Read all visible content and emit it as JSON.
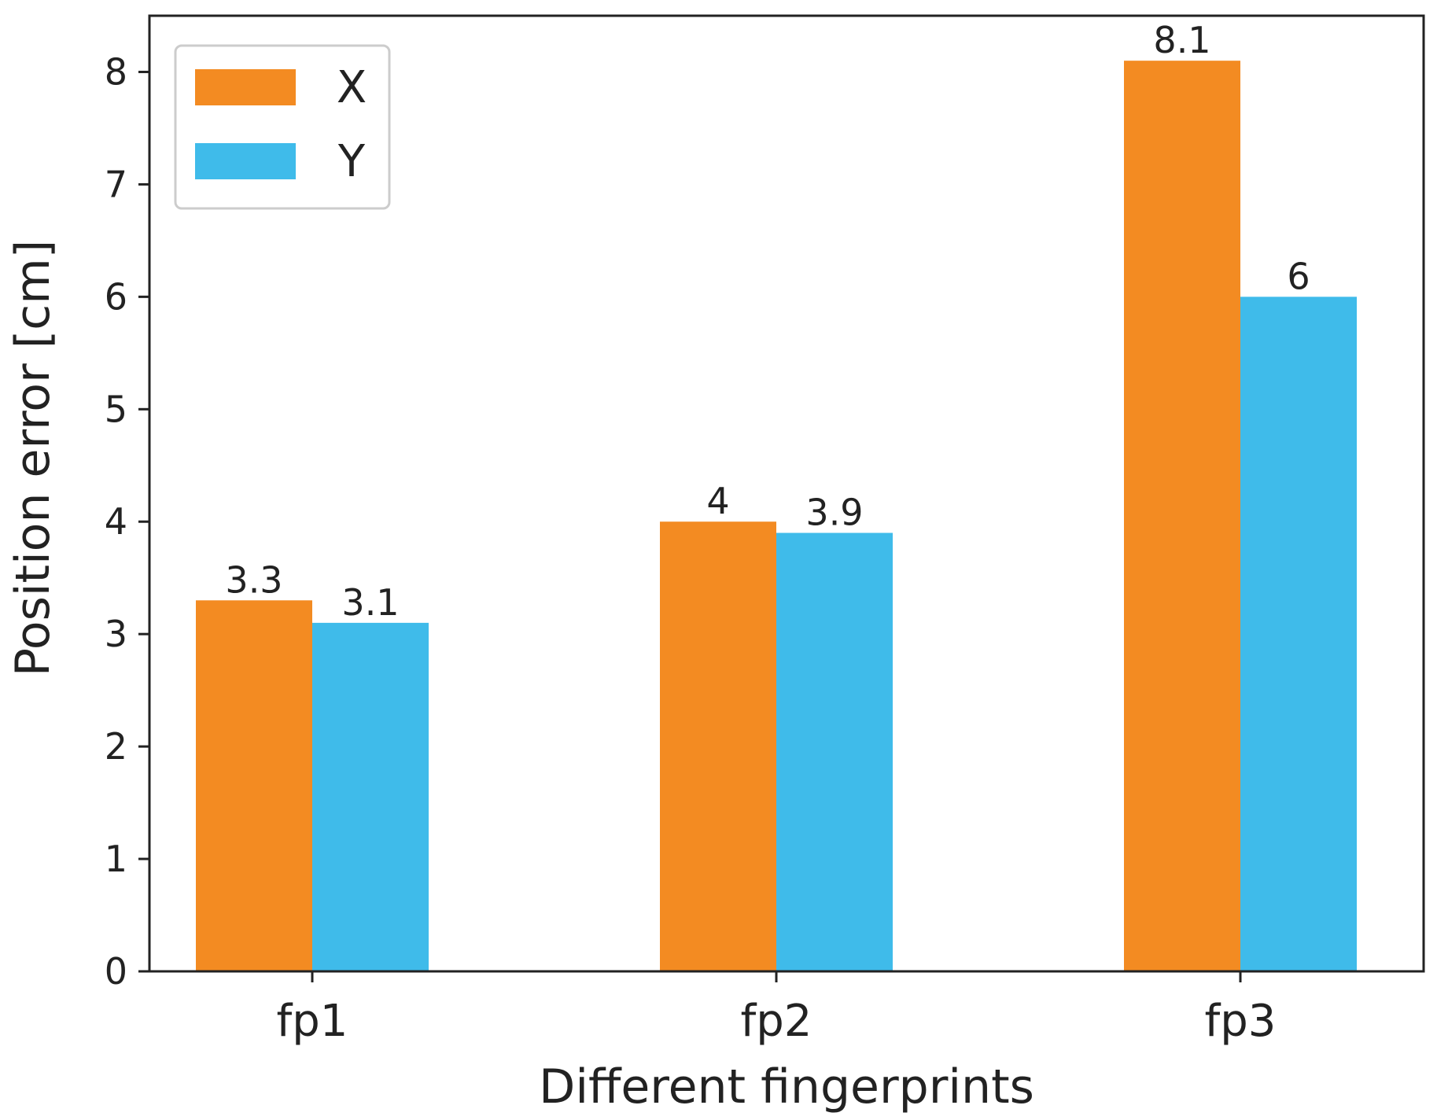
{
  "chart_data": {
    "type": "bar",
    "title": "",
    "xlabel": "Different fingerprints",
    "ylabel": "Position error [cm]",
    "categories": [
      "fp1",
      "fp2",
      "fp3"
    ],
    "series": [
      {
        "name": "X",
        "color": "#f38b22",
        "values": [
          3.3,
          4,
          8.1
        ],
        "labels": [
          "3.3",
          "4",
          "8.1"
        ]
      },
      {
        "name": "Y",
        "color": "#3fbbea",
        "values": [
          3.1,
          3.9,
          6
        ],
        "labels": [
          "3.1",
          "3.9",
          "6"
        ]
      }
    ],
    "ylim": [
      0,
      8.5
    ],
    "yticks": [
      "0",
      "1",
      "2",
      "3",
      "4",
      "5",
      "6",
      "7",
      "8"
    ],
    "grid": false,
    "legend_position": "top-left"
  }
}
